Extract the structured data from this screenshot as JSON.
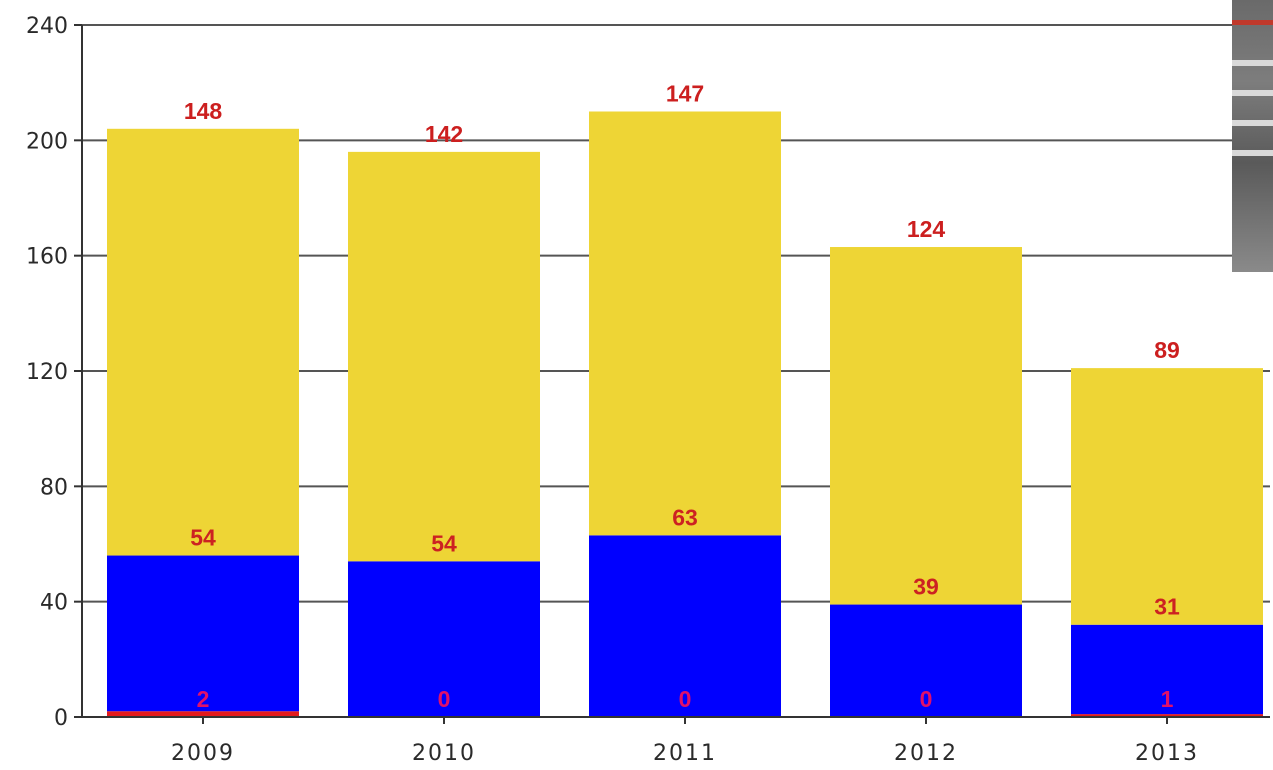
{
  "chart_data": {
    "type": "bar",
    "stacked": true,
    "categories": [
      "2009",
      "2010",
      "2011",
      "2012",
      "2013"
    ],
    "series": [
      {
        "values": [
          2,
          0,
          0,
          0,
          1
        ],
        "color": "#e31a1c",
        "label_color": "#e0106a"
      },
      {
        "values": [
          54,
          54,
          63,
          39,
          31
        ],
        "color": "#0000ff",
        "label_color": "#cc2222"
      },
      {
        "values": [
          148,
          142,
          147,
          124,
          89
        ],
        "color": "#eed535",
        "label_color": "#cc1f1f"
      }
    ],
    "title": "",
    "xlabel": "",
    "ylabel": "",
    "ylim": [
      0,
      240
    ],
    "yticks": [
      0,
      40,
      80,
      120,
      160,
      200,
      240
    ],
    "grid": true,
    "gridline_color": "#555555",
    "background": "#ffffff"
  },
  "photo": {
    "icon": "road-photo-icon"
  }
}
